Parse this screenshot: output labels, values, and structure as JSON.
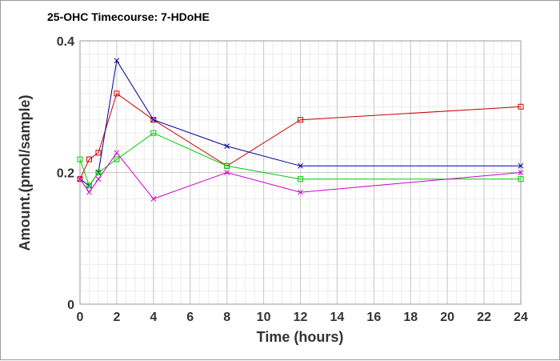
{
  "chart_data": {
    "type": "line",
    "title": "25-OHC Timecourse: 7-HDoHE",
    "xlabel": "Time (hours)",
    "ylabel": "Amount.(pmol/sample)",
    "xlim": [
      0,
      24
    ],
    "ylim": [
      0,
      0.4
    ],
    "x_ticks": [
      0,
      2,
      4,
      6,
      8,
      10,
      12,
      14,
      16,
      18,
      20,
      22,
      24
    ],
    "y_ticks": [
      0,
      0.2,
      0.4
    ],
    "y_tick_labels": [
      "0",
      "0.2",
      "0.4"
    ],
    "grid": true,
    "legend": "none",
    "series": [
      {
        "color": "#cc0000",
        "marker": "square",
        "x": [
          0,
          0.5,
          1,
          2,
          4,
          8,
          12,
          24
        ],
        "y": [
          0.19,
          0.22,
          0.23,
          0.32,
          0.28,
          0.21,
          0.28,
          0.3
        ]
      },
      {
        "color": "#000099",
        "marker": "cross",
        "x": [
          0,
          0.5,
          1,
          2,
          4,
          8,
          12,
          24
        ],
        "y": [
          0.19,
          0.18,
          0.2,
          0.37,
          0.28,
          0.24,
          0.21,
          0.21
        ]
      },
      {
        "color": "#00cc00",
        "marker": "square",
        "x": [
          0,
          0.5,
          1,
          2,
          4,
          8,
          12,
          24
        ],
        "y": [
          0.22,
          0.18,
          0.2,
          0.22,
          0.26,
          0.21,
          0.19,
          0.19
        ]
      },
      {
        "color": "#cc00cc",
        "marker": "cross",
        "x": [
          0,
          0.5,
          1,
          2,
          4,
          8,
          12,
          24
        ],
        "y": [
          0.19,
          0.17,
          0.19,
          0.23,
          0.16,
          0.2,
          0.17,
          0.2
        ]
      }
    ]
  }
}
